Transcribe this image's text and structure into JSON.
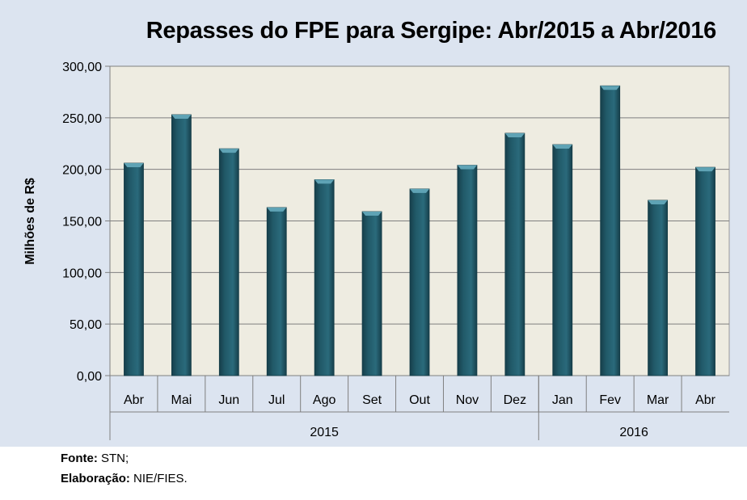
{
  "chart_data": {
    "type": "bar",
    "title": "Repasses do FPE para Sergipe: Abr/2015 a Abr/2016",
    "xlabel": "",
    "ylabel": "Milhões de R$",
    "ylim": [
      0,
      300
    ],
    "yticks": [
      "0,00",
      "50,00",
      "100,00",
      "150,00",
      "200,00",
      "250,00",
      "300,00"
    ],
    "categories": [
      "Abr",
      "Mai",
      "Jun",
      "Jul",
      "Ago",
      "Set",
      "Out",
      "Nov",
      "Dez",
      "Jan",
      "Fev",
      "Mar",
      "Abr"
    ],
    "groups": [
      {
        "label": "2015",
        "count": 9
      },
      {
        "label": "2016",
        "count": 4
      }
    ],
    "values": [
      206,
      253,
      220,
      163,
      190,
      159,
      181,
      204,
      235,
      224,
      281,
      170,
      202
    ],
    "grid": true,
    "bar_color": "#215968",
    "plot_bg": "#eeece1"
  },
  "footer": {
    "source_label": "Fonte:",
    "source_value": " STN;",
    "elab_label": "Elaboração:",
    "elab_value": "  NIE/FIES."
  }
}
